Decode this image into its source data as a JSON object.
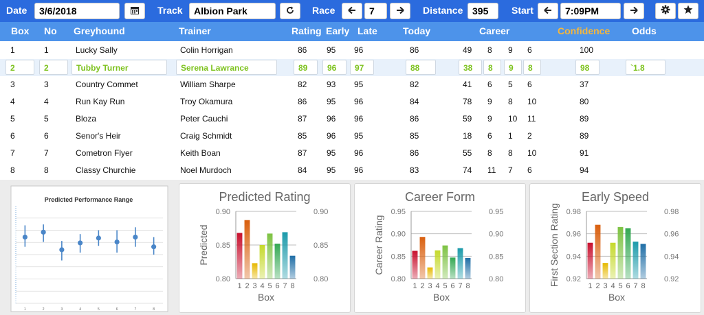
{
  "topbar": {
    "date_label": "Date",
    "date_value": "3/6/2018",
    "track_label": "Track",
    "track_value": "Albion Park",
    "race_label": "Race",
    "race_value": "7",
    "distance_label": "Distance",
    "distance_value": "395",
    "start_label": "Start",
    "start_value": "7:09PM",
    "icons": {
      "calendar": "calendar-icon",
      "refresh": "refresh-icon",
      "prev": "arrow-left-icon",
      "next": "arrow-right-icon",
      "settings": "gear-icon",
      "favorite": "star-icon"
    }
  },
  "columns": {
    "box": "Box",
    "no": "No",
    "greyhound": "Greyhound",
    "trainer": "Trainer",
    "rating": "Rating",
    "early": "Early",
    "late": "Late",
    "today": "Today",
    "career": "Career",
    "confidence": "Confidence",
    "odds": "Odds"
  },
  "colors": {
    "topbar": "#2b6bde",
    "header": "#4d93ea",
    "confidence_header": "#f6b73c",
    "highlight_text": "#7dc21e",
    "highlight_bg": "#e8f1fb"
  },
  "rows": [
    {
      "box": "1",
      "no": "1",
      "greyhound": "Lucky Sally",
      "trainer": "Colin Horrigan",
      "rating": "86",
      "early": "95",
      "late": "96",
      "today": "86",
      "c1": "49",
      "c2": "8",
      "c3": "9",
      "c4": "6",
      "confidence": "100",
      "odds": ""
    },
    {
      "box": "2",
      "no": "2",
      "greyhound": "Tubby Turner",
      "trainer": "Serena Lawrance",
      "rating": "89",
      "early": "96",
      "late": "97",
      "today": "88",
      "c1": "38",
      "c2": "8",
      "c3": "9",
      "c4": "8",
      "confidence": "98",
      "odds": "`1.8"
    },
    {
      "box": "3",
      "no": "3",
      "greyhound": "Country Commet",
      "trainer": "William Sharpe",
      "rating": "82",
      "early": "93",
      "late": "95",
      "today": "82",
      "c1": "41",
      "c2": "6",
      "c3": "5",
      "c4": "6",
      "confidence": "37",
      "odds": ""
    },
    {
      "box": "4",
      "no": "4",
      "greyhound": "Run Kay Run",
      "trainer": "Troy Okamura",
      "rating": "86",
      "early": "95",
      "late": "96",
      "today": "84",
      "c1": "78",
      "c2": "9",
      "c3": "8",
      "c4": "10",
      "confidence": "80",
      "odds": ""
    },
    {
      "box": "5",
      "no": "5",
      "greyhound": "Bloza",
      "trainer": "Peter Cauchi",
      "rating": "87",
      "early": "96",
      "late": "96",
      "today": "86",
      "c1": "59",
      "c2": "9",
      "c3": "10",
      "c4": "11",
      "confidence": "89",
      "odds": ""
    },
    {
      "box": "6",
      "no": "6",
      "greyhound": "Senor's Heir",
      "trainer": "Craig Schmidt",
      "rating": "85",
      "early": "96",
      "late": "95",
      "today": "85",
      "c1": "18",
      "c2": "6",
      "c3": "1",
      "c4": "2",
      "confidence": "89",
      "odds": ""
    },
    {
      "box": "7",
      "no": "7",
      "greyhound": "Cometron Flyer",
      "trainer": "Keith Boan",
      "rating": "87",
      "early": "95",
      "late": "96",
      "today": "86",
      "c1": "55",
      "c2": "8",
      "c3": "8",
      "c4": "10",
      "confidence": "91",
      "odds": ""
    },
    {
      "box": "8",
      "no": "8",
      "greyhound": "Classy Churchie",
      "trainer": "Noel Murdoch",
      "rating": "84",
      "early": "95",
      "late": "96",
      "today": "83",
      "c1": "74",
      "c2": "11",
      "c3": "7",
      "c4": "6",
      "confidence": "94",
      "odds": ""
    }
  ],
  "chart_data": [
    {
      "type": "scatter",
      "title": "Predicted Performance Range",
      "categories": [
        "1",
        "2",
        "3",
        "4",
        "5",
        "6",
        "7",
        "8"
      ],
      "values": [
        0.68,
        0.73,
        0.55,
        0.62,
        0.67,
        0.63,
        0.68,
        0.58
      ],
      "high": [
        0.8,
        0.81,
        0.64,
        0.71,
        0.75,
        0.75,
        0.78,
        0.68
      ],
      "low": [
        0.58,
        0.63,
        0.44,
        0.52,
        0.59,
        0.52,
        0.58,
        0.5
      ],
      "ylim": [
        0,
        1
      ]
    },
    {
      "type": "bar",
      "title": "Predicted Rating",
      "categories": [
        "1",
        "2",
        "3",
        "4",
        "5",
        "6",
        "7",
        "8"
      ],
      "values": [
        0.868,
        0.887,
        0.823,
        0.85,
        0.867,
        0.852,
        0.869,
        0.834
      ],
      "xlabel": "Box",
      "ylabel": "Predicted",
      "ylim": [
        0.8,
        0.9
      ],
      "ticks": [
        "0.90",
        "0.85",
        "0.80"
      ]
    },
    {
      "type": "bar",
      "title": "Career Form",
      "categories": [
        "1",
        "2",
        "3",
        "4",
        "5",
        "6",
        "7",
        "8"
      ],
      "values": [
        0.862,
        0.893,
        0.825,
        0.863,
        0.874,
        0.847,
        0.868,
        0.846
      ],
      "xlabel": "Box",
      "ylabel": "Career Rating",
      "ylim": [
        0.8,
        0.95
      ],
      "ticks": [
        "0.95",
        "0.90",
        "0.85",
        "0.80"
      ]
    },
    {
      "type": "bar",
      "title": "Early Speed",
      "categories": [
        "1",
        "2",
        "3",
        "4",
        "5",
        "6",
        "7",
        "8"
      ],
      "values": [
        0.952,
        0.968,
        0.934,
        0.952,
        0.966,
        0.965,
        0.953,
        0.951
      ],
      "xlabel": "Box",
      "ylabel": "First Section Rating",
      "ylim": [
        0.92,
        0.98
      ],
      "ticks": [
        "0.98",
        "0.96",
        "0.94",
        "0.92"
      ]
    }
  ]
}
